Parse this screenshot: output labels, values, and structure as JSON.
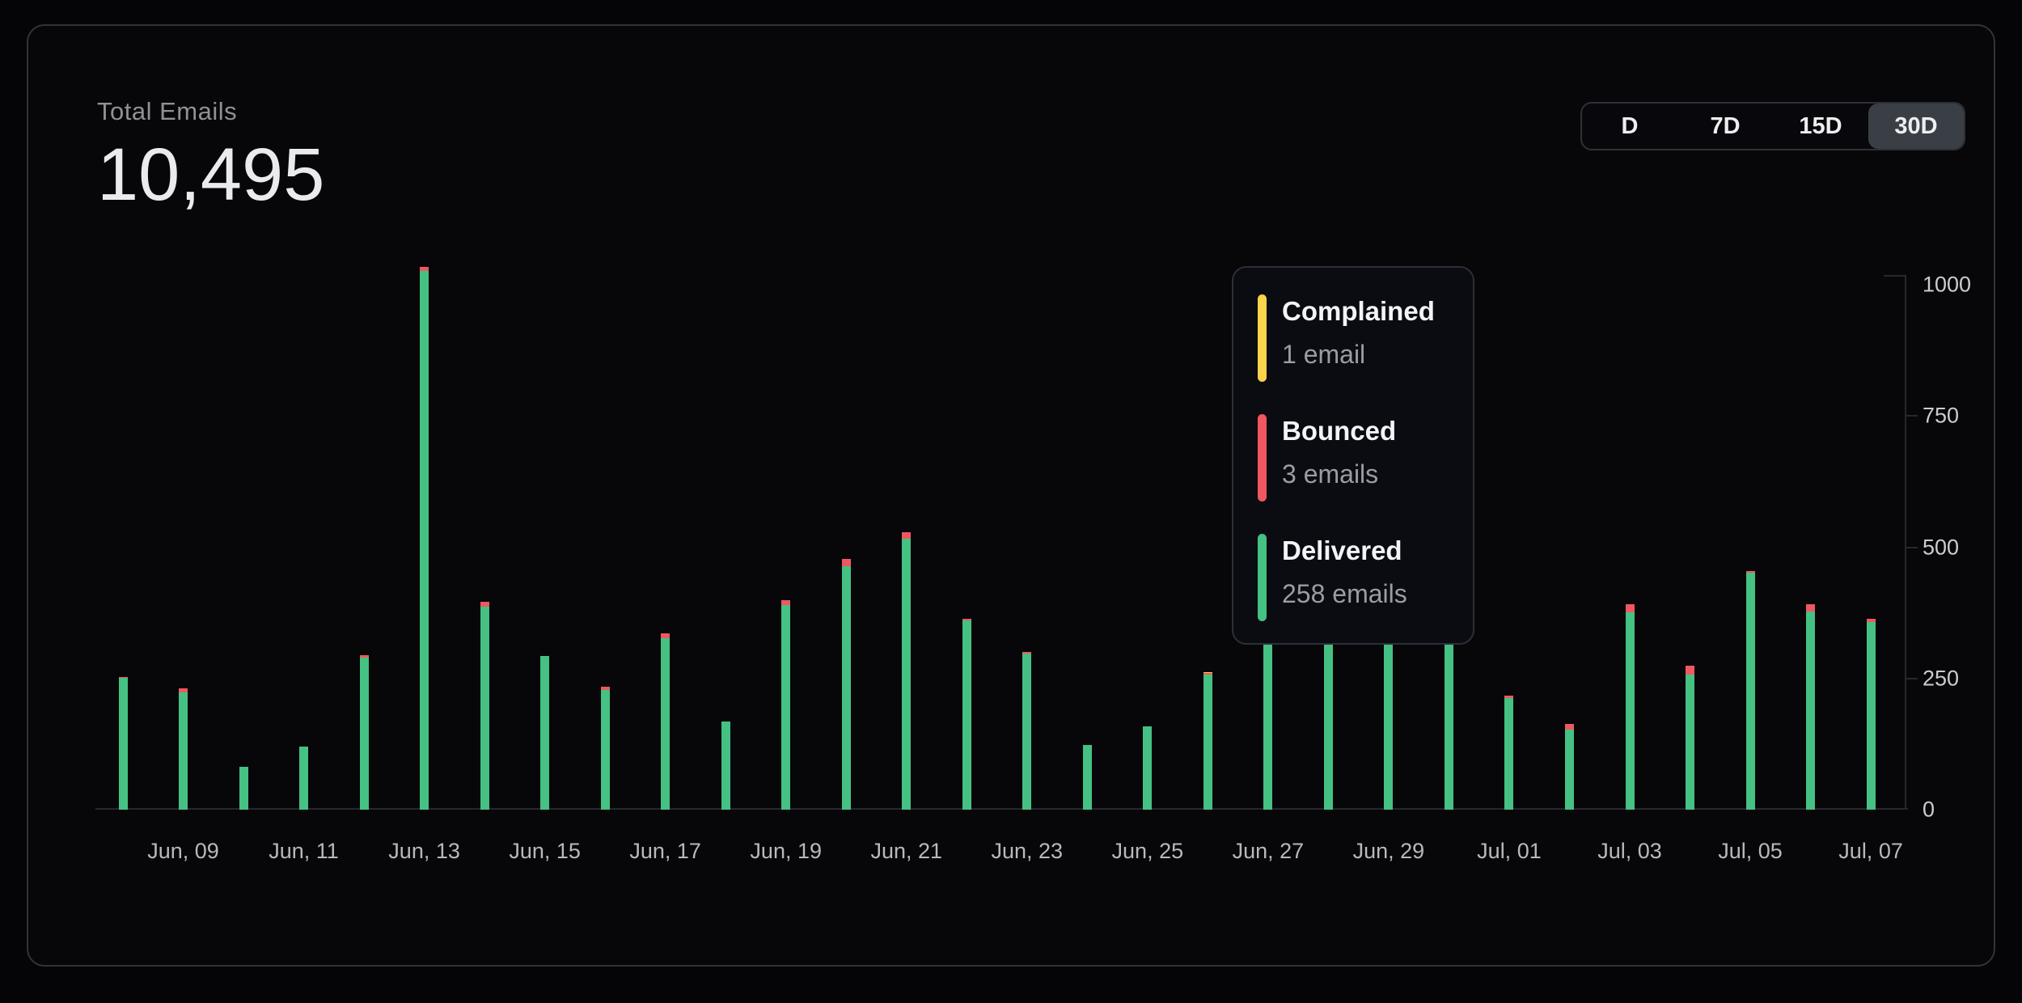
{
  "summary": {
    "label": "Total Emails",
    "value": "10,495"
  },
  "range_selector": {
    "options": [
      {
        "label": "D",
        "selected": false
      },
      {
        "label": "7D",
        "selected": false
      },
      {
        "label": "15D",
        "selected": false
      },
      {
        "label": "30D",
        "selected": true
      }
    ]
  },
  "tooltip": {
    "entries": [
      {
        "label": "Complained",
        "value": "1 email",
        "color": "#fbd24a"
      },
      {
        "label": "Bounced",
        "value": "3 emails",
        "color": "#ef5860"
      },
      {
        "label": "Delivered",
        "value": "258 emails",
        "color": "#45c183"
      }
    ]
  },
  "chart_data": {
    "type": "bar",
    "stacked": true,
    "title": "Total Emails",
    "xlabel": "",
    "ylabel": "",
    "ylim": [
      0,
      1000
    ],
    "yticks": [
      0,
      250,
      500,
      750,
      1000
    ],
    "grid": false,
    "legend_position": "tooltip-overlay",
    "hovered_category": "Jun, 26",
    "categories": [
      "Jun, 08",
      "Jun, 09",
      "Jun, 10",
      "Jun, 11",
      "Jun, 12",
      "Jun, 13",
      "Jun, 14",
      "Jun, 15",
      "Jun, 16",
      "Jun, 17",
      "Jun, 18",
      "Jun, 19",
      "Jun, 20",
      "Jun, 21",
      "Jun, 22",
      "Jun, 23",
      "Jun, 24",
      "Jun, 25",
      "Jun, 26",
      "Jun, 27",
      "Jun, 28",
      "Jun, 29",
      "Jun, 30",
      "Jul, 01",
      "Jul, 02",
      "Jul, 03",
      "Jul, 04",
      "Jul, 05",
      "Jul, 06",
      "Jul, 07"
    ],
    "x_tick_every": 2,
    "x_tick_start_index": 1,
    "series": [
      {
        "name": "Delivered",
        "color": "#45c183",
        "values": [
          251,
          224,
          82,
          120,
          289,
          1026,
          386,
          293,
          228,
          327,
          168,
          390,
          464,
          516,
          360,
          297,
          123,
          158,
          258,
          512,
          571,
          547,
          523,
          213,
          152,
          376,
          258,
          451,
          378,
          358
        ]
      },
      {
        "name": "Bounced",
        "color": "#ef5860",
        "values": [
          2,
          7,
          0,
          0,
          5,
          8,
          10,
          0,
          6,
          9,
          0,
          9,
          13,
          12,
          4,
          4,
          0,
          0,
          3,
          8,
          9,
          8,
          7,
          4,
          12,
          16,
          16,
          3,
          14,
          6
        ]
      },
      {
        "name": "Complained",
        "color": "#fbd24a",
        "values": [
          0,
          0,
          0,
          0,
          0,
          0,
          0,
          0,
          0,
          0,
          0,
          0,
          0,
          0,
          0,
          0,
          0,
          0,
          1,
          0,
          0,
          0,
          0,
          0,
          0,
          0,
          0,
          0,
          0,
          0
        ]
      }
    ]
  },
  "layout_meta": {
    "note": "Tops of bars Jun 27 - Jun 30 are partially hidden behind the tooltip overlay"
  }
}
